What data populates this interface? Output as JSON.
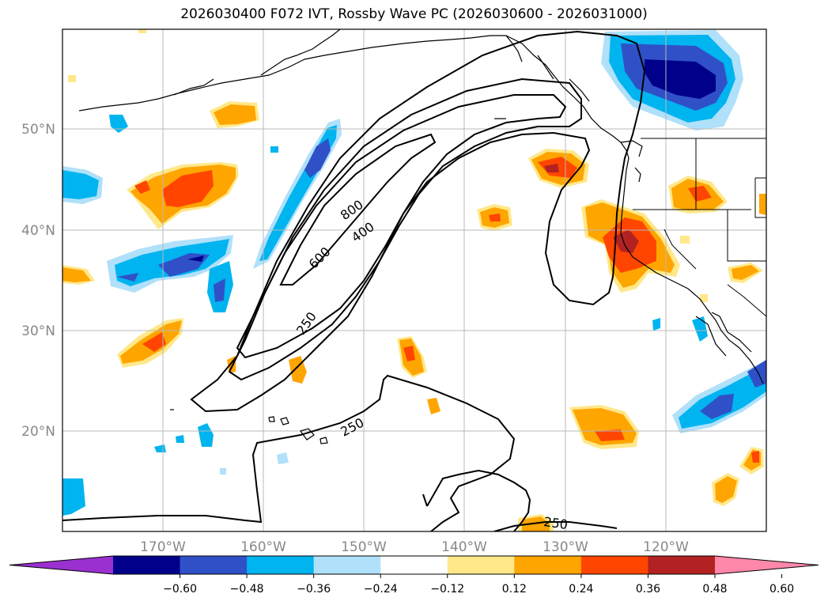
{
  "title": "2026030400 F072 IVT, Rossby Wave PC (2026030600 - 2026031000)",
  "map": {
    "projection": "cylindrical",
    "lon_range": [
      -180,
      -110
    ],
    "lat_range": [
      10,
      60
    ],
    "lat_ticks": [
      {
        "value": 50,
        "label": "50°N"
      },
      {
        "value": 40,
        "label": "40°N"
      },
      {
        "value": 30,
        "label": "30°N"
      },
      {
        "value": 20,
        "label": "20°N"
      }
    ],
    "lon_ticks": [
      {
        "value": -170,
        "label": "170°W"
      },
      {
        "value": -160,
        "label": "160°W"
      },
      {
        "value": -150,
        "label": "150°W"
      },
      {
        "value": -140,
        "label": "140°W"
      },
      {
        "value": -130,
        "label": "130°W"
      },
      {
        "value": -120,
        "label": "120°W"
      }
    ],
    "grid": true,
    "contour_labels": [
      {
        "text": "800",
        "lon": -149.5,
        "lat": 42
      },
      {
        "text": "400",
        "lon": -148,
        "lat": 40
      },
      {
        "text": "600",
        "lon": -154,
        "lat": 37.5
      },
      {
        "text": "250",
        "lon": -155.5,
        "lat": 30.5
      },
      {
        "text": "250",
        "lon": -147,
        "lat": 20.5
      },
      {
        "text": "250",
        "lon": -131.5,
        "lat": 11
      }
    ]
  },
  "colorbar": {
    "ticks": [
      "−0.60",
      "−0.48",
      "−0.36",
      "−0.24",
      "−0.12",
      "0.12",
      "0.24",
      "0.36",
      "0.48",
      "0.60"
    ],
    "colors": [
      "#9b30d0",
      "#00008b",
      "#3050c8",
      "#00b4f0",
      "#b0e0fa",
      "#ffffff",
      "#ffe88a",
      "#ffa500",
      "#ff4500",
      "#b22222",
      "#ff88aa"
    ],
    "extend": "both"
  },
  "colors": {
    "neg_strong": "#00008b",
    "neg_med": "#3050c8",
    "neg": "#00b4f0",
    "neg_light": "#b0e0fa",
    "pos_light": "#ffe88a",
    "pos": "#ffa500",
    "pos_med": "#ff4500",
    "pos_strong": "#b22222"
  }
}
